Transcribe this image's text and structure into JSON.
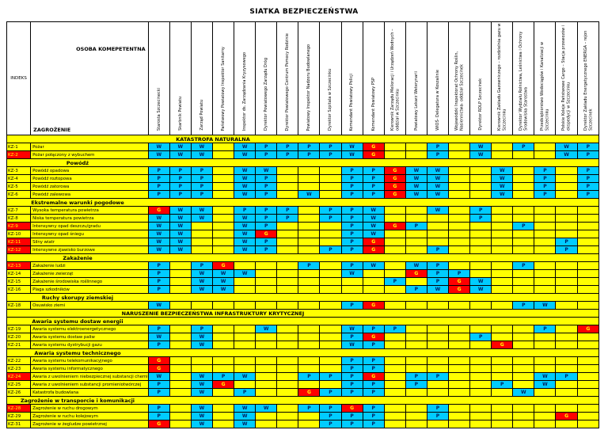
{
  "title": "SIATKA BEZPIECZEŃSTWA",
  "header": {
    "corner_top": "OSOBA KOMEPETENTNA",
    "corner_left": "INDEKS",
    "corner_bottom": "ZAGROŻENIE",
    "columns": [
      "Starosta Szczecinecki",
      "Skarbnik Powiatu",
      "Zarząd Powiatu",
      "Państwowy Powiatowy Inspektor Sanitarny",
      "Inspektor ds. Zarządzania Kryzysowego",
      "Dyrektor Powiatowego Zarządu Dróg",
      "Dyrektor Powiatowego Centrum Pomocy Rodzinie",
      "Powiatowy Inspektor Nadzoru Budowlanego",
      "Dyrektor Szpitala w Szczecinku",
      "Komendant Powiatowy Policji",
      "Komendant Powiatowy PSP",
      "Kierownik Zarządu Melioracji i Urządzeń Wodnych – oddział w Szczecinku",
      "Powiatowy Lekarz Weterynarii",
      "WIOŚ- Delegatura w Koszalinie",
      "Wojewódzki Inspektorat Ochrony Roślin, Nasiennictwa- oddział Szczecinek",
      "Dyrektor RDLP Szczecinek",
      "Kierownik Zakładu Gazowniczego – rozdzielnia gazu w Szczecinku",
      "Dyrektor Wydziału Rolnictwa, Leśnictwa i Ochrony Środowiska Starostwa",
      "Przedsiębiorstwo Wodociągów i Kanalizacji w Szczecinku",
      "Polskie Koleje Państwowe Cargo – Stacja przewozów i ekspedycji w Szczecinku",
      "Dyrektor Zakładu Energetycznego ENERGA – rejon Szczecinek"
    ]
  },
  "colors": {
    "row_bg": "#FFFF00",
    "support_cell_bg": "#00CCFF",
    "lead_cell_bg": "#FF0000",
    "alert_index_bg": "#FF0000"
  },
  "rows": [
    {
      "type": "section",
      "label": "KATASTROFA NATURALNA",
      "wide": true
    },
    {
      "type": "hazard",
      "index": "KZ-1",
      "alert": false,
      "label": "Pożar",
      "cells": [
        "W",
        "W",
        "W",
        "",
        "W",
        "P",
        "P",
        "P",
        "P",
        "W",
        "G",
        "",
        "",
        "P",
        "",
        "W",
        "",
        "P",
        "",
        "W",
        "P"
      ]
    },
    {
      "type": "hazard",
      "index": "KZ-2",
      "alert": true,
      "label": "Pożar połączony z wybuchem",
      "cells": [
        "W",
        "W",
        "W",
        "",
        "W",
        "P",
        "P",
        "P",
        "P",
        "W",
        "G",
        "",
        "",
        "P",
        "",
        "W",
        "",
        "",
        "",
        "W",
        "P"
      ]
    },
    {
      "type": "section",
      "label": "Powódź",
      "wide": false
    },
    {
      "type": "hazard",
      "index": "KZ-3",
      "alert": false,
      "label": "Powódź opadowa",
      "cells": [
        "P",
        "P",
        "P",
        "",
        "W",
        "W",
        "",
        "",
        "",
        "P",
        "P",
        "G",
        "W",
        "W",
        "",
        "",
        "W",
        "",
        "P",
        "",
        "P"
      ]
    },
    {
      "type": "hazard",
      "index": "KZ-4",
      "alert": false,
      "label": "Powódź roztopowa",
      "cells": [
        "P",
        "P",
        "P",
        "",
        "W",
        "P",
        "",
        "",
        "",
        "P",
        "P",
        "G",
        "W",
        "W",
        "",
        "",
        "W",
        "",
        "P",
        "",
        "P"
      ]
    },
    {
      "type": "hazard",
      "index": "KZ-5",
      "alert": false,
      "label": "Powódź zatorowa",
      "cells": [
        "P",
        "P",
        "P",
        "",
        "W",
        "P",
        "",
        "",
        "",
        "P",
        "P",
        "G",
        "W",
        "W",
        "",
        "",
        "W",
        "",
        "P",
        "",
        "P"
      ]
    },
    {
      "type": "hazard",
      "index": "KZ-6",
      "alert": false,
      "label": "Powódź zalewowa",
      "cells": [
        "P",
        "P",
        "P",
        "",
        "W",
        "P",
        "",
        "W",
        "",
        "P",
        "P",
        "G",
        "W",
        "W",
        "",
        "",
        "W",
        "",
        "P",
        "",
        "P"
      ]
    },
    {
      "type": "section",
      "label": "Ekstremalne warunki pogodowe",
      "wide": false
    },
    {
      "type": "hazard",
      "index": "KZ-7",
      "alert": false,
      "label": "Wysoka temperatura powietrza",
      "cells": [
        "G",
        "W",
        "W",
        "",
        "P",
        "P",
        "P",
        "",
        "P",
        "P",
        "W",
        "",
        "",
        "W",
        "",
        "P",
        "",
        "",
        "",
        "",
        ""
      ]
    },
    {
      "type": "hazard",
      "index": "KZ-8",
      "alert": false,
      "label": "Niska temperatura powietrza",
      "cells": [
        "W",
        "W",
        "W",
        "",
        "W",
        "P",
        "P",
        "",
        "P",
        "P",
        "W",
        "",
        "",
        "",
        "",
        "P",
        "",
        "",
        "",
        "",
        ""
      ]
    },
    {
      "type": "hazard",
      "index": "KZ-9",
      "alert": true,
      "label": "Intensywny opad deszczu/gradu",
      "cells": [
        "W",
        "W",
        "",
        "",
        "W",
        "P",
        "",
        "",
        "",
        "P",
        "W",
        "G",
        "P",
        "",
        "",
        "",
        "",
        "P",
        "",
        "",
        ""
      ]
    },
    {
      "type": "hazard",
      "index": "KZ-10",
      "alert": false,
      "label": "Intensywny opad śniegu",
      "cells": [
        "W",
        "W",
        "",
        "",
        "W",
        "G",
        "",
        "",
        "",
        "P",
        "W",
        "",
        "",
        "",
        "",
        "",
        "",
        "",
        "",
        "",
        ""
      ]
    },
    {
      "type": "hazard",
      "index": "KZ-11",
      "alert": true,
      "label": "Silny wiatr",
      "cells": [
        "W",
        "W",
        "",
        "",
        "W",
        "P",
        "",
        "",
        "",
        "P",
        "G",
        "",
        "",
        "",
        "",
        "",
        "",
        "",
        "",
        "P",
        ""
      ]
    },
    {
      "type": "hazard",
      "index": "KZ-12",
      "alert": true,
      "label": "Intensywne zjawisko burzowe",
      "cells": [
        "W",
        "W",
        "",
        "",
        "W",
        "P",
        "",
        "",
        "P",
        "P",
        "G",
        "",
        "",
        "P",
        "",
        "",
        "",
        "",
        "",
        "P",
        ""
      ]
    },
    {
      "type": "section",
      "label": "Zakażenie",
      "wide": false
    },
    {
      "type": "hazard",
      "index": "KZ-13",
      "alert": true,
      "label": "Zakażenie ludzi",
      "cells": [
        "P",
        "",
        "P",
        "G",
        "",
        "",
        "",
        "P",
        "",
        "P",
        "W",
        "",
        "W",
        "P",
        "",
        "",
        "",
        "P",
        "",
        "",
        ""
      ]
    },
    {
      "type": "hazard",
      "index": "KZ-14",
      "alert": false,
      "label": "Zakażenie zwierząt",
      "cells": [
        "P",
        "",
        "W",
        "W",
        "W",
        "",
        "",
        "",
        "",
        "W",
        "",
        "",
        "G",
        "P",
        "P",
        "",
        "",
        "",
        "",
        "",
        ""
      ]
    },
    {
      "type": "hazard",
      "index": "KZ-15",
      "alert": false,
      "label": "Zakażenie środowiska roślinnego",
      "cells": [
        "P",
        "",
        "W",
        "W",
        "",
        "",
        "",
        "",
        "",
        "",
        "",
        "P",
        "",
        "P",
        "G",
        "W",
        "",
        "",
        "",
        "",
        ""
      ]
    },
    {
      "type": "hazard",
      "index": "KZ-16",
      "alert": false,
      "label": "Plaga szkodników",
      "cells": [
        "P",
        "",
        "W",
        "W",
        "",
        "",
        "",
        "",
        "",
        "",
        "",
        "",
        "P",
        "W",
        "G",
        "W",
        "",
        "",
        "",
        "",
        ""
      ]
    },
    {
      "type": "section",
      "label": "Ruchy skorupy ziemskiej",
      "wide": false
    },
    {
      "type": "hazard",
      "index": "KZ-18",
      "alert": false,
      "label": "Osuwisko ziemi",
      "cells": [
        "W",
        "",
        "",
        "",
        "",
        "",
        "",
        "",
        "",
        "P",
        "G",
        "",
        "",
        "",
        "",
        "",
        "",
        "P",
        "W",
        "",
        ""
      ]
    },
    {
      "type": "section",
      "label": "NARUSZENIE BEZPIECZEŃSTWA INFRASTRUKTURY KRYTYCZNEJ",
      "wide": true
    },
    {
      "type": "section",
      "label": "Awaria systemu dostaw energii",
      "wide": false
    },
    {
      "type": "hazard",
      "index": "KZ-19",
      "alert": false,
      "label": "Awaria systemu elektroenergetycznego",
      "cells": [
        "P",
        "",
        "P",
        "",
        "",
        "W",
        "",
        "",
        "",
        "W",
        "P",
        "P",
        "",
        "",
        "",
        "",
        "",
        "",
        "P",
        "",
        "G"
      ]
    },
    {
      "type": "hazard",
      "index": "KZ-20",
      "alert": false,
      "label": "Awaria systemu dostaw paliw",
      "cells": [
        "W",
        "",
        "W",
        "",
        "",
        "",
        "",
        "",
        "",
        "P",
        "G",
        "",
        "",
        "",
        "",
        "P",
        "",
        "",
        "",
        "",
        ""
      ]
    },
    {
      "type": "hazard",
      "index": "KZ-21",
      "alert": false,
      "label": "Awaria systemu dystrybucji gazu",
      "cells": [
        "P",
        "",
        "W",
        "",
        "",
        "",
        "",
        "",
        "",
        "W",
        "P",
        "",
        "",
        "",
        "",
        "",
        "G",
        "",
        "",
        "",
        ""
      ]
    },
    {
      "type": "section",
      "label": "Awaria systemu technicznego",
      "wide": false
    },
    {
      "type": "hazard",
      "index": "KZ-22",
      "alert": false,
      "label": "Awaria systemu telekomunikacyjnego",
      "cells": [
        "G",
        "",
        "",
        "",
        "",
        "",
        "",
        "",
        "",
        "P",
        "P",
        "",
        "",
        "",
        "",
        "",
        "",
        "",
        "",
        "",
        ""
      ]
    },
    {
      "type": "hazard",
      "index": "KZ-23",
      "alert": false,
      "label": "Awaria systemu informatycznego",
      "cells": [
        "G",
        "",
        "",
        "",
        "",
        "",
        "",
        "",
        "",
        "P",
        "P",
        "",
        "",
        "",
        "",
        "",
        "",
        "",
        "",
        "",
        ""
      ]
    },
    {
      "type": "hazard",
      "index": "KZ-24",
      "alert": true,
      "label": "Awaria z uwolnieniem niebezpiecznej substancji chemicznej",
      "cells": [
        "W",
        "",
        "W",
        "P",
        "W",
        "",
        "",
        "P",
        "P",
        "P",
        "G",
        "",
        "P",
        "P",
        "",
        "",
        "",
        "",
        "W",
        "P",
        ""
      ]
    },
    {
      "type": "hazard",
      "index": "KZ-25",
      "alert": false,
      "label": "Awaria z uwolnieniem substancji promieniotwórczej",
      "cells": [
        "P",
        "",
        "W",
        "G",
        "",
        "",
        "",
        "",
        "",
        "P",
        "P",
        "",
        "P",
        "",
        "",
        "",
        "P",
        "",
        "W",
        "",
        ""
      ]
    },
    {
      "type": "hazard",
      "index": "KZ-26",
      "alert": false,
      "label": "Katastrofa budowlana",
      "cells": [
        "P",
        "",
        "W",
        "",
        "P",
        "",
        "",
        "G",
        "P",
        "P",
        "P",
        "",
        "",
        "",
        "",
        "",
        "",
        "W",
        "",
        "",
        ""
      ]
    },
    {
      "type": "section",
      "label": "Zagrożenie w transporcie i komunikacji",
      "wide": false
    },
    {
      "type": "hazard",
      "index": "KZ-28",
      "alert": true,
      "label": "Zagrożenie w ruchu drogowym",
      "cells": [
        "P",
        "",
        "W",
        "",
        "W",
        "W",
        "",
        "P",
        "P",
        "G",
        "P",
        "",
        "",
        "P",
        "",
        "",
        "",
        "",
        "",
        "",
        ""
      ]
    },
    {
      "type": "hazard",
      "index": "KZ-29",
      "alert": false,
      "label": "Zagrożenie w ruchu kolejowym",
      "cells": [
        "P",
        "",
        "W",
        "",
        "W",
        "",
        "",
        "",
        "P",
        "P",
        "P",
        "",
        "",
        "P",
        "",
        "",
        "",
        "",
        "",
        "G",
        ""
      ]
    },
    {
      "type": "hazard",
      "index": "KZ-31",
      "alert": false,
      "label": "Zagrożenie w żegludze powietrznej",
      "cells": [
        "G",
        "",
        "W",
        "",
        "W",
        "",
        "",
        "",
        "P",
        "P",
        "P",
        "",
        "",
        "",
        "",
        "",
        "",
        "",
        "",
        "",
        ""
      ]
    }
  ]
}
